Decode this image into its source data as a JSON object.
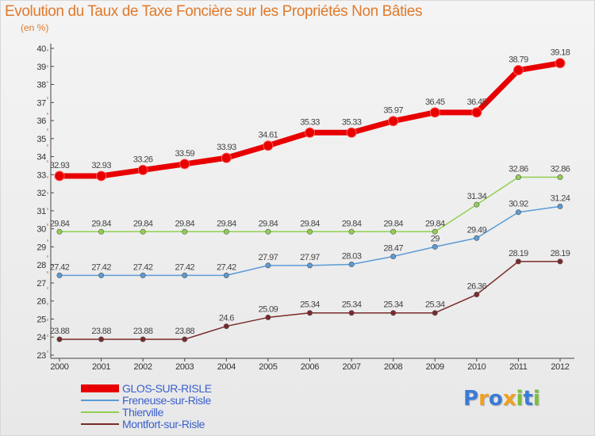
{
  "title": "Evolution du Taux de Taxe Foncière sur les Propriétés Non Bâties",
  "subtitle": "(en %)",
  "brand": {
    "letters": [
      {
        "ch": "P",
        "color": "#3b7bd6"
      },
      {
        "ch": "r",
        "color": "#f0a020"
      },
      {
        "ch": "o",
        "color": "#3b7bd6"
      },
      {
        "ch": "x",
        "color": "#f0a020"
      },
      {
        "ch": "i",
        "color": "#7bbf3a"
      },
      {
        "ch": "t",
        "color": "#3b7bd6"
      },
      {
        "ch": "i",
        "color": "#7bbf3a"
      }
    ]
  },
  "chart_data": {
    "type": "line",
    "x": [
      "2000",
      "2001",
      "2002",
      "2003",
      "2004",
      "2005",
      "2006",
      "2007",
      "2008",
      "2009",
      "2010",
      "2011",
      "2012"
    ],
    "ylim": [
      23,
      40
    ],
    "yticks": [
      23,
      24,
      25,
      26,
      27,
      28,
      29,
      30,
      31,
      32,
      33,
      34,
      35,
      36,
      37,
      38,
      39,
      40
    ],
    "grid": false,
    "legend_position": "bottom-left",
    "series": [
      {
        "name": "GLOS-SUR-RISLE",
        "color": "#e80000",
        "values": [
          32.93,
          32.93,
          33.26,
          33.59,
          33.93,
          34.61,
          35.33,
          35.33,
          35.97,
          36.45,
          36.45,
          38.79,
          39.18
        ],
        "labels": [
          "32.93",
          "32.93",
          "33.26",
          "33.59",
          "33.93",
          "34.61",
          "35.33",
          "35.33",
          "35.97",
          "36.45",
          "36.45",
          "38.79",
          "39.18"
        ]
      },
      {
        "name": "Freneuse-sur-Risle",
        "color": "#5b9bd5",
        "values": [
          27.42,
          27.42,
          27.42,
          27.42,
          27.42,
          27.97,
          27.97,
          28.03,
          28.47,
          29.0,
          29.49,
          30.92,
          31.24
        ],
        "labels": [
          "27.42",
          "27.42",
          "27.42",
          "27.42",
          "27.42",
          "27.97",
          "27.97",
          "28.03",
          "28.47",
          "29",
          "29.49",
          "30.92",
          "31.24"
        ]
      },
      {
        "name": "Thierville",
        "color": "#90d050",
        "values": [
          29.84,
          29.84,
          29.84,
          29.84,
          29.84,
          29.84,
          29.84,
          29.84,
          29.84,
          29.84,
          31.34,
          32.86,
          32.86
        ],
        "labels": [
          "29.84",
          "29.84",
          "29.84",
          "29.84",
          "29.84",
          "29.84",
          "29.84",
          "29.84",
          "29.84",
          "29.84",
          "31.34",
          "32.86",
          "32.86"
        ]
      },
      {
        "name": "Montfort-sur-Risle",
        "color": "#7a2a2a",
        "values": [
          23.88,
          23.88,
          23.88,
          23.88,
          24.6,
          25.09,
          25.34,
          25.34,
          25.34,
          25.34,
          26.36,
          28.19,
          28.19
        ],
        "labels": [
          "23.88",
          "23.88",
          "23.88",
          "23.88",
          "24.6",
          "25.09",
          "25.34",
          "25.34",
          "25.34",
          "25.34",
          "26.36",
          "28.19",
          "28.19"
        ]
      }
    ]
  }
}
